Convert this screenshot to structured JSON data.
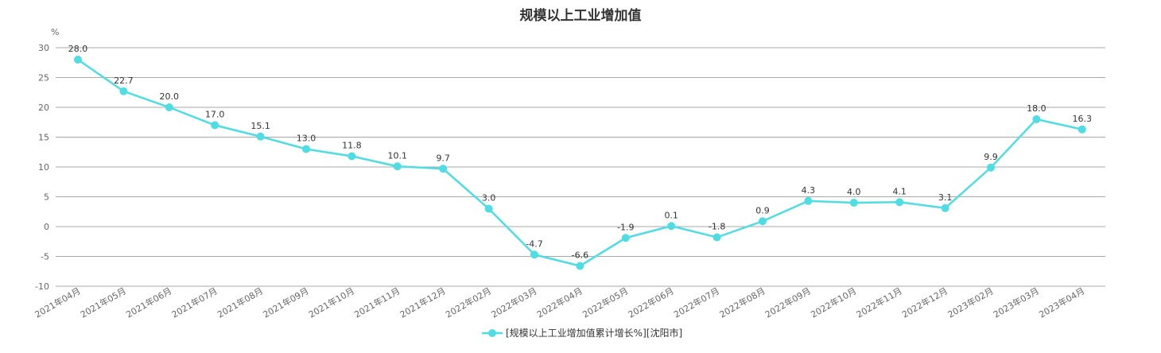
{
  "chart_data": {
    "type": "line",
    "title": "规模以上工业增加值",
    "ylabel": "%",
    "xlabel": "",
    "ylim": [
      -10,
      30
    ],
    "yticks": [
      30,
      25,
      20,
      15,
      10,
      5,
      0,
      -5,
      -10
    ],
    "grid": true,
    "legend_position": "bottom-center",
    "categories": [
      "2021年04月",
      "2021年05月",
      "2021年06月",
      "2021年07月",
      "2021年08月",
      "2021年09月",
      "2021年10月",
      "2021年11月",
      "2021年12月",
      "2022年02月",
      "2022年03月",
      "2022年04月",
      "2022年05月",
      "2022年06月",
      "2022年07月",
      "2022年08月",
      "2022年09月",
      "2022年10月",
      "2022年11月",
      "2022年12月",
      "2023年02月",
      "2023年03月",
      "2023年04月"
    ],
    "series": [
      {
        "name": "[规模以上工业增加值累计增长%][沈阳市]",
        "color": "#4ddde3",
        "values": [
          28.0,
          22.7,
          20.0,
          17.0,
          15.1,
          13.0,
          11.8,
          10.1,
          9.7,
          3.0,
          -4.7,
          -6.6,
          -1.9,
          0.1,
          -1.8,
          0.9,
          4.3,
          4.0,
          4.1,
          3.1,
          9.9,
          18.0,
          16.3
        ],
        "labels": [
          "28.0",
          "22.7",
          "20.0",
          "17.0",
          "15.1",
          "13.0",
          "11.8",
          "10.1",
          "9.7",
          "3.0",
          "-4.7",
          "-6.6",
          "-1.9",
          "0.1",
          "-1.8",
          "0.9",
          "4.3",
          "4.0",
          "4.1",
          "3.1",
          "9.9",
          "18.0",
          "16.3"
        ]
      }
    ]
  }
}
